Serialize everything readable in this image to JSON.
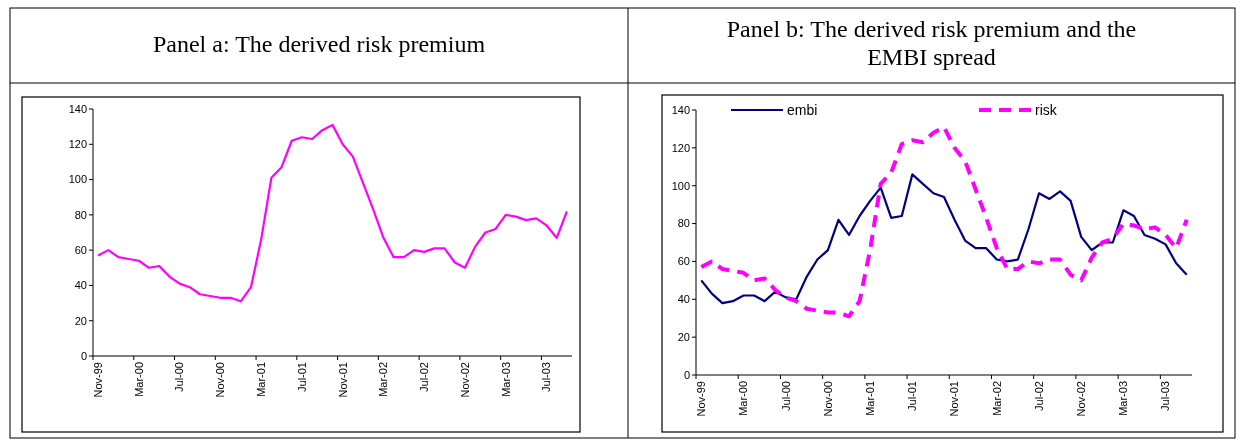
{
  "chart_data": [
    {
      "type": "line",
      "title": "Panel a: The derived risk premium",
      "categories": [
        "Nov-99",
        null,
        null,
        null,
        "Mar-00",
        null,
        null,
        null,
        "Jul-00",
        null,
        null,
        null,
        "Nov-00",
        null,
        null,
        null,
        "Mar-01",
        null,
        null,
        null,
        "Jul-01",
        null,
        null,
        null,
        "Nov-01",
        null,
        null,
        null,
        "Mar-02",
        null,
        null,
        null,
        "Jul-02",
        null,
        null,
        null,
        "Nov-02",
        null,
        null,
        null,
        "Mar-03",
        null,
        null,
        null,
        "Jul-03",
        null,
        null
      ],
      "ylim": [
        0,
        140
      ],
      "yticks": [
        0,
        20,
        40,
        60,
        80,
        100,
        120,
        140
      ],
      "series": [
        {
          "color": "#ff00ff",
          "line_style": "solid",
          "values": [
            57,
            60,
            56,
            55,
            54,
            50,
            51,
            45,
            41,
            39,
            35,
            34,
            33,
            33,
            31,
            39,
            66,
            101,
            107,
            122,
            124,
            123,
            128,
            131,
            120,
            113,
            98,
            83,
            67,
            56,
            56,
            60,
            59,
            61,
            61,
            53,
            50,
            62,
            70,
            72,
            80,
            79,
            77,
            78,
            74,
            67,
            82
          ]
        }
      ]
    },
    {
      "type": "line",
      "title": "Panel b: The derived risk premium and the EMBI spread",
      "categories": [
        "Nov-99",
        null,
        null,
        null,
        "Mar-00",
        null,
        null,
        null,
        "Jul-00",
        null,
        null,
        null,
        "Nov-00",
        null,
        null,
        null,
        "Mar-01",
        null,
        null,
        null,
        "Jul-01",
        null,
        null,
        null,
        "Nov-01",
        null,
        null,
        null,
        "Mar-02",
        null,
        null,
        null,
        "Jul-02",
        null,
        null,
        null,
        "Nov-02",
        null,
        null,
        null,
        "Mar-03",
        null,
        null,
        null,
        "Jul-03",
        null,
        null
      ],
      "ylim": [
        0,
        140
      ],
      "yticks": [
        0,
        20,
        40,
        60,
        80,
        100,
        120,
        140
      ],
      "legend": "top",
      "series": [
        {
          "name": "embi",
          "color": "#000080",
          "line_style": "solid",
          "values": [
            50,
            43,
            38,
            39,
            42,
            42,
            39,
            44,
            41,
            40,
            52,
            61,
            66,
            82,
            74,
            84,
            92,
            99,
            83,
            84,
            106,
            101,
            96,
            94,
            82,
            71,
            67,
            67,
            61,
            60,
            61,
            77,
            96,
            93,
            97,
            92,
            73,
            66,
            70,
            70,
            87,
            84,
            74,
            72,
            69,
            59,
            53
          ]
        },
        {
          "name": "risk",
          "color": "#ff00ff",
          "line_style": "dashed",
          "values": [
            57,
            60,
            56,
            55,
            54,
            50,
            51,
            45,
            41,
            39,
            35,
            34,
            33,
            33,
            31,
            39,
            66,
            101,
            107,
            122,
            124,
            123,
            128,
            131,
            120,
            113,
            98,
            83,
            67,
            56,
            56,
            60,
            59,
            61,
            61,
            53,
            50,
            62,
            70,
            72,
            80,
            79,
            77,
            78,
            74,
            67,
            82
          ]
        }
      ]
    }
  ]
}
